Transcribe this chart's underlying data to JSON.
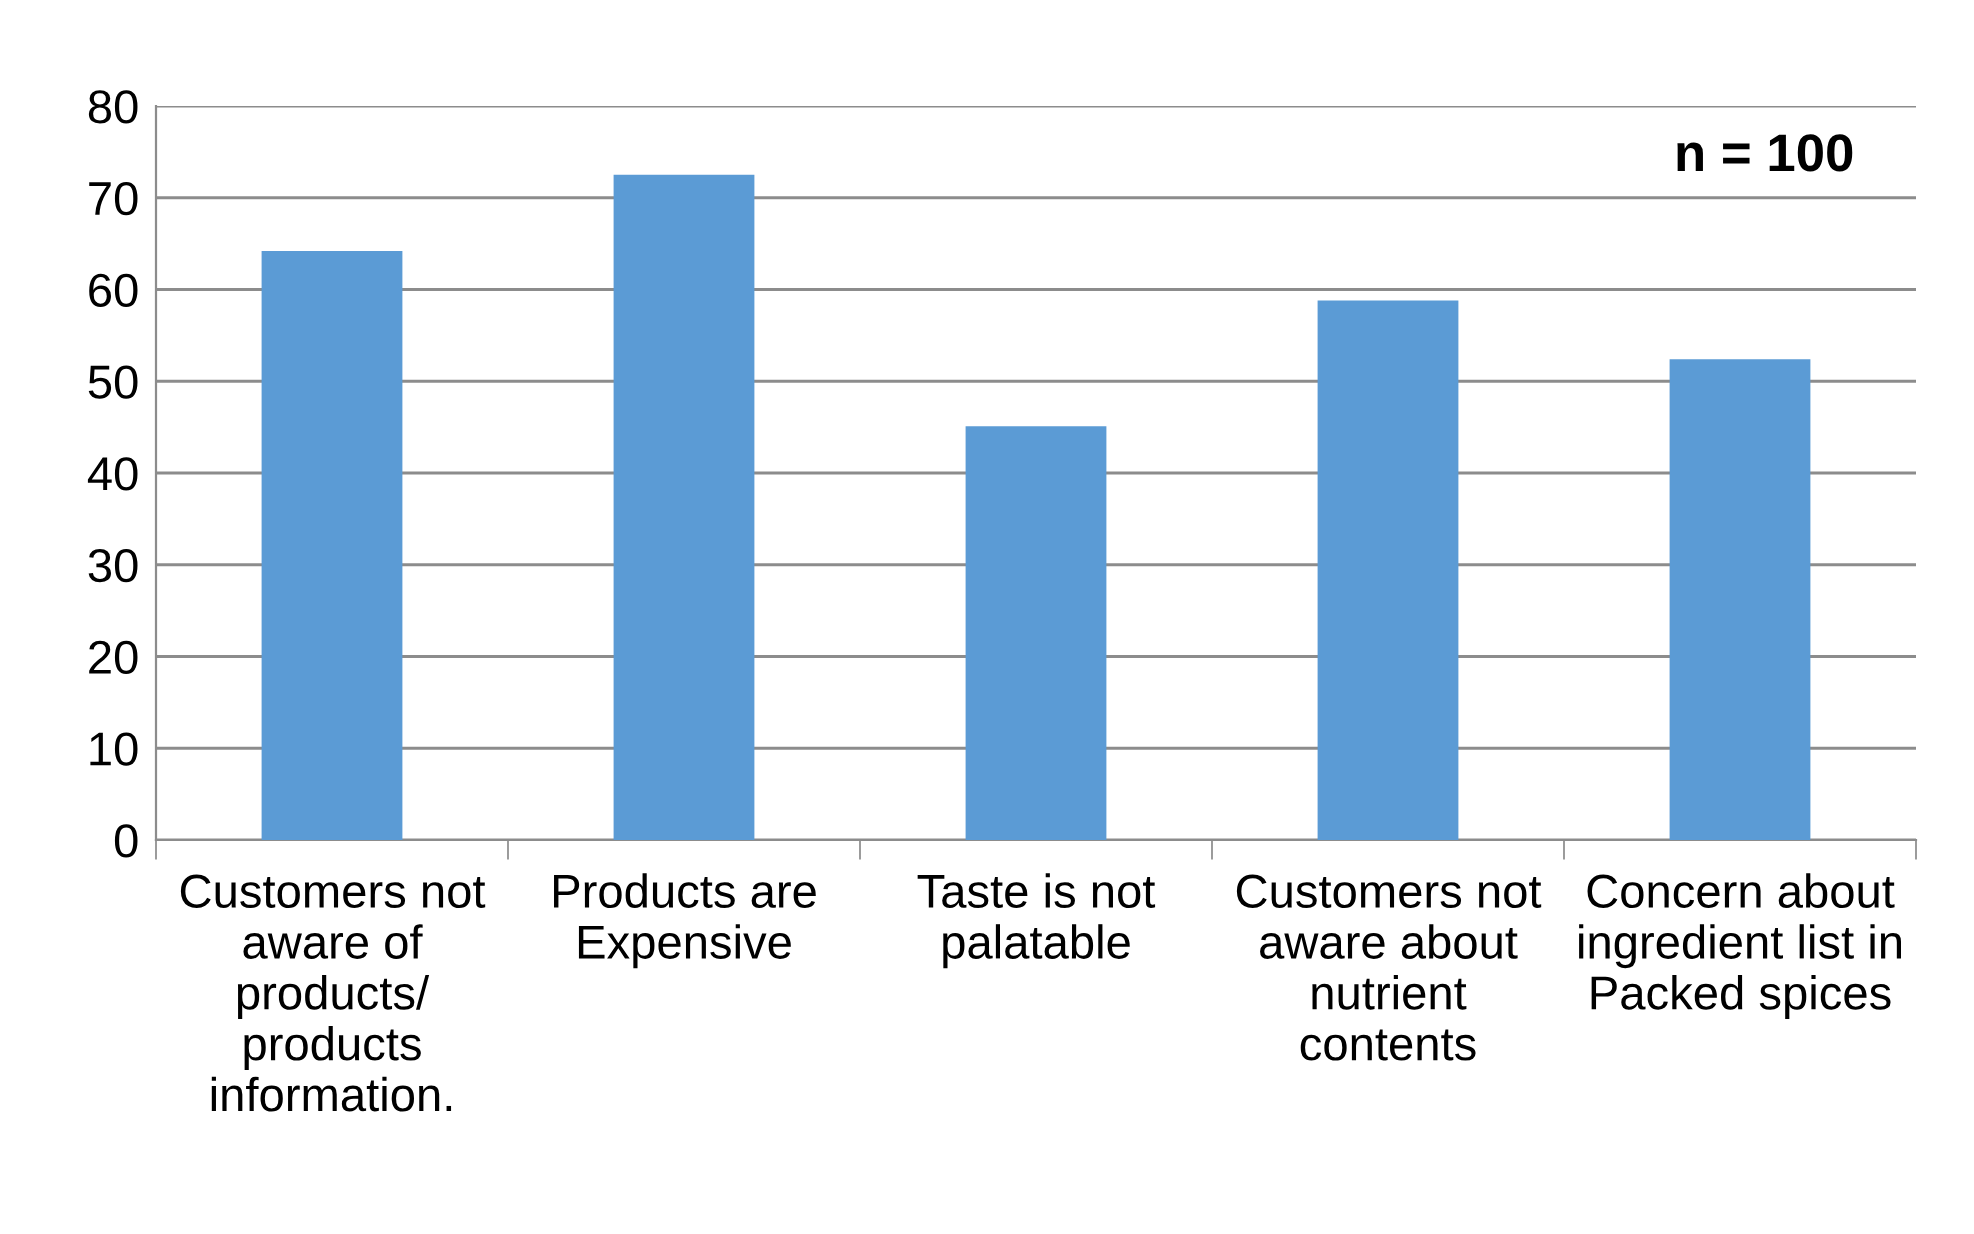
{
  "chart_data": {
    "type": "bar",
    "categories": [
      "Customers not\naware of\nproducts/\nproducts\ninformation.",
      "Products are\nExpensive",
      "Taste is not\npalatable",
      "Customers not\naware about\nnutrient\ncontents",
      "Concern about\ningredient list in\nPacked spices"
    ],
    "values": [
      64.2,
      72.5,
      45.1,
      58.8,
      52.4
    ],
    "color": "#5b9bd5",
    "ylim": [
      0,
      80
    ],
    "yticks": [
      0,
      10,
      20,
      30,
      40,
      50,
      60,
      70,
      80
    ],
    "grid": "y",
    "legend": false,
    "annotations": [
      "n = 100"
    ]
  }
}
